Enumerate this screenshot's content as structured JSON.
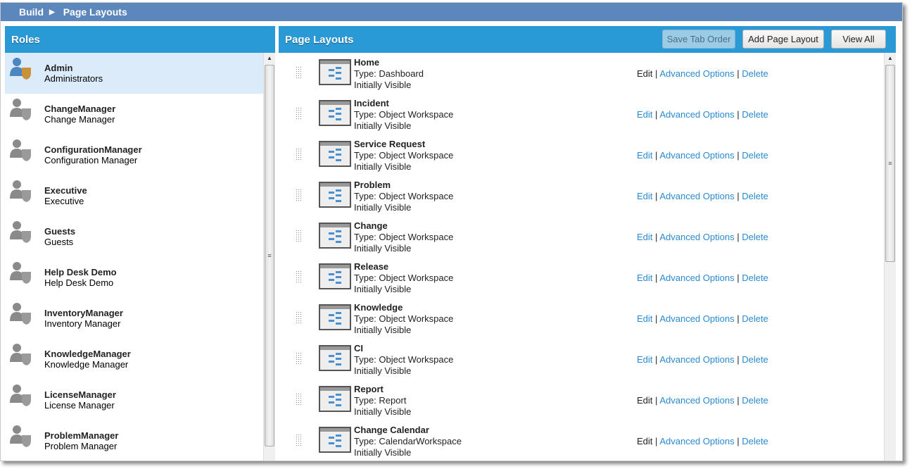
{
  "breadcrumb": {
    "root": "Build",
    "current": "Page Layouts"
  },
  "roles": {
    "title": "Roles",
    "items": [
      {
        "name": "Admin",
        "desc": "Administrators",
        "selected": true,
        "icon": "admin-user-shield-icon"
      },
      {
        "name": "ChangeManager",
        "desc": "Change Manager"
      },
      {
        "name": "ConfigurationManager",
        "desc": "Configuration Manager"
      },
      {
        "name": "Executive",
        "desc": "Executive"
      },
      {
        "name": "Guests",
        "desc": "Guests"
      },
      {
        "name": "Help Desk Demo",
        "desc": "Help Desk Demo"
      },
      {
        "name": "InventoryManager",
        "desc": "Inventory Manager"
      },
      {
        "name": "KnowledgeManager",
        "desc": "Knowledge Manager"
      },
      {
        "name": "LicenseManager",
        "desc": "License Manager"
      },
      {
        "name": "ProblemManager",
        "desc": "Problem Manager"
      }
    ]
  },
  "layouts": {
    "title": "Page Layouts",
    "save_label": "Save Tab Order",
    "add_label": "Add Page Layout",
    "viewall_label": "View All",
    "edit": "Edit",
    "advanced": "Advanced Options",
    "delete": "Delete",
    "sep": "|",
    "items": [
      {
        "name": "Home",
        "type": "Type: Dashboard",
        "vis": "Initially Visible",
        "edit_link": false
      },
      {
        "name": "Incident",
        "type": "Type: Object Workspace",
        "vis": "Initially Visible",
        "edit_link": true
      },
      {
        "name": "Service Request",
        "type": "Type: Object Workspace",
        "vis": "Initially Visible",
        "edit_link": true
      },
      {
        "name": "Problem",
        "type": "Type: Object Workspace",
        "vis": "Initially Visible",
        "edit_link": true
      },
      {
        "name": "Change",
        "type": "Type: Object Workspace",
        "vis": "Initially Visible",
        "edit_link": true
      },
      {
        "name": "Release",
        "type": "Type: Object Workspace",
        "vis": "Initially Visible",
        "edit_link": true
      },
      {
        "name": "Knowledge",
        "type": "Type: Object Workspace",
        "vis": "Initially Visible",
        "edit_link": true
      },
      {
        "name": "CI",
        "type": "Type: Object Workspace",
        "vis": "Initially Visible",
        "edit_link": true
      },
      {
        "name": "Report",
        "type": "Type: Report",
        "vis": "Initially Visible",
        "edit_link": false
      },
      {
        "name": "Change Calendar",
        "type": "Type: CalendarWorkspace",
        "vis": "Initially Visible",
        "edit_link": false
      }
    ]
  },
  "colors": {
    "header": "#5b87bd",
    "panel_header": "#2a9ad6",
    "link": "#2a8ad0",
    "selected_row": "#dcebfa"
  }
}
